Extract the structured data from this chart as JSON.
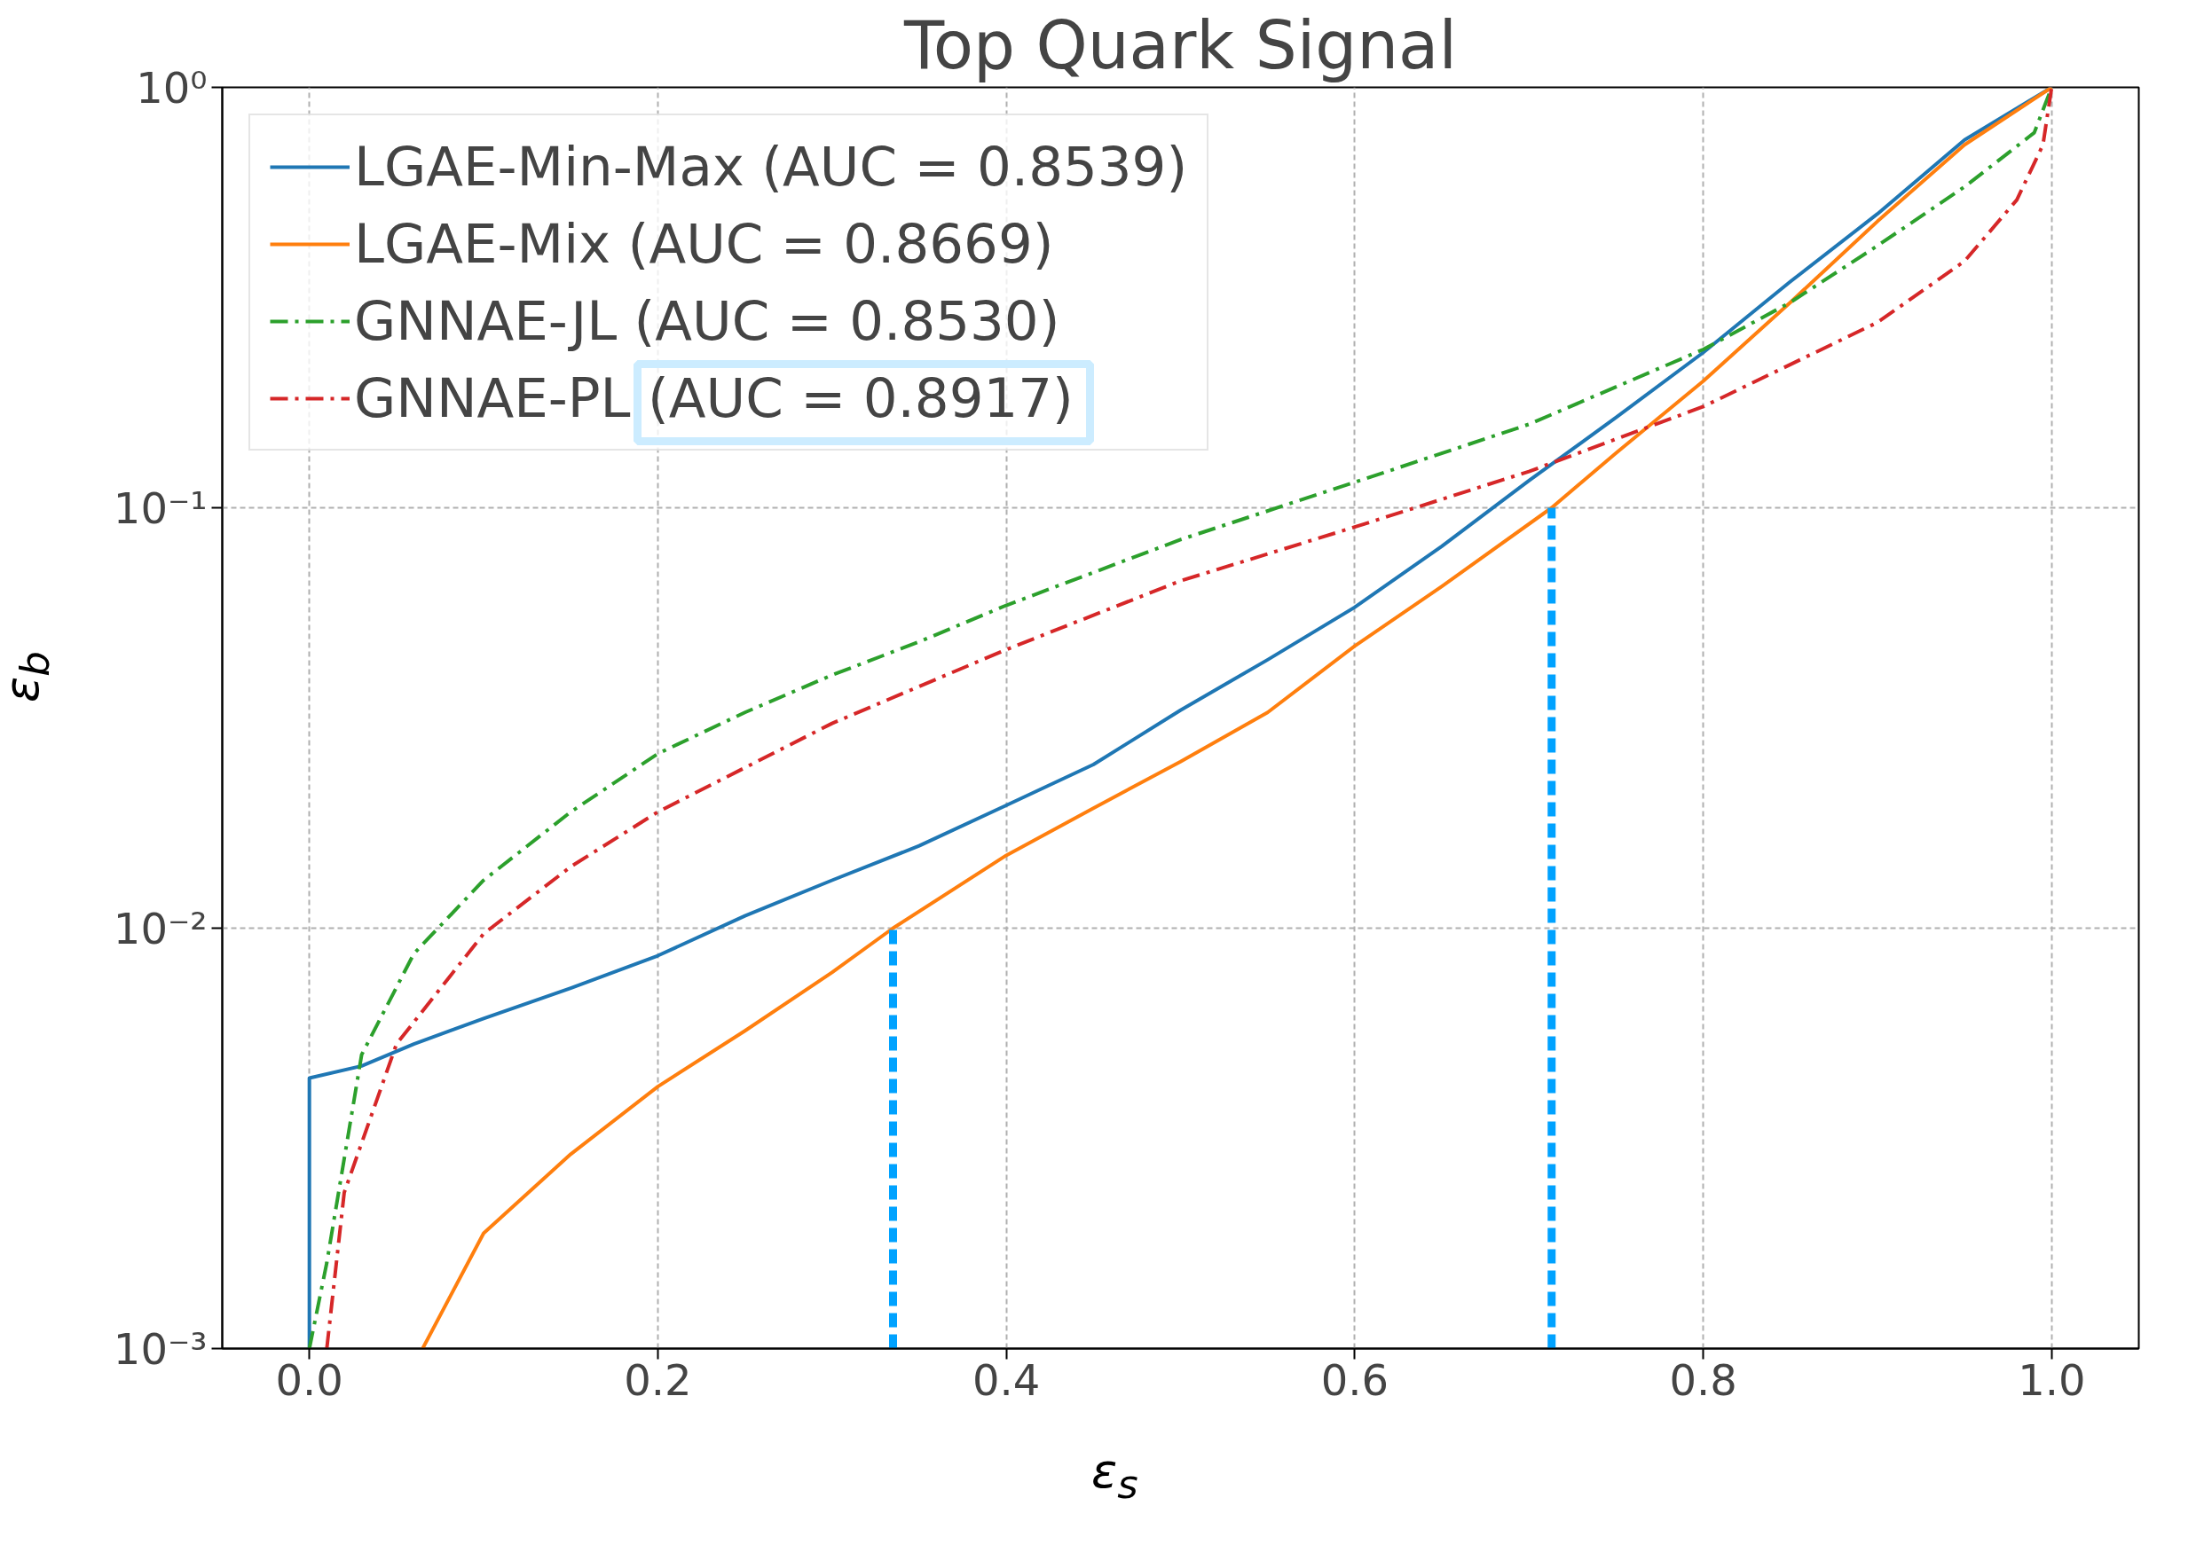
{
  "chart_data": {
    "type": "line",
    "title": "Top Quark Signal",
    "xlabel": "ε$_{s}$",
    "ylabel": "ε$_{b}$",
    "log": "y",
    "grid": true,
    "legend": "top left",
    "xlim": [
      -0.05,
      1.05
    ],
    "ylim": [
      0.001,
      1
    ],
    "xticks": [
      {
        "value": 0,
        "label": "0.0"
      },
      {
        "value": 0.2,
        "label": "0.2"
      },
      {
        "value": 0.4,
        "label": "0.4"
      },
      {
        "value": 0.6,
        "label": "0.6"
      },
      {
        "value": 0.8,
        "label": "0.8"
      },
      {
        "value": 1,
        "label": "1.0"
      }
    ],
    "yticks": [
      {
        "value": 0.001,
        "label": "10⁻³"
      },
      {
        "value": 0.01,
        "label": "10⁻²"
      },
      {
        "value": 0.1,
        "label": "10⁻¹"
      },
      {
        "value": 1,
        "label": "10⁰"
      }
    ],
    "series": [
      {
        "name": "LGAE-Min-Max (AUC = 0.8539)",
        "color": "#1f77b4",
        "line_style": "solid",
        "x": [
          0,
          0,
          0.03,
          0.06,
          0.1,
          0.15,
          0.2,
          0.25,
          0.3,
          0.35,
          0.4,
          0.45,
          0.5,
          0.55,
          0.6,
          0.65,
          0.7,
          0.75,
          0.8,
          0.85,
          0.9,
          0.95,
          1.0
        ],
        "values": [
          0.001,
          0.0044,
          0.0047,
          0.0053,
          0.0061,
          0.0072,
          0.0086,
          0.0107,
          0.013,
          0.0157,
          0.0196,
          0.0245,
          0.033,
          0.0435,
          0.058,
          0.081,
          0.116,
          0.164,
          0.234,
          0.345,
          0.5,
          0.75,
          1.0
        ]
      },
      {
        "name": "LGAE-Mix (AUC = 0.8669)",
        "color": "#ff7f0e",
        "line_style": "solid",
        "x": [
          0.065,
          0.1,
          0.15,
          0.2,
          0.25,
          0.3,
          0.335,
          0.4,
          0.45,
          0.5,
          0.55,
          0.6,
          0.65,
          0.713,
          0.75,
          0.8,
          0.85,
          0.9,
          0.95,
          1.0
        ],
        "values": [
          0.001,
          0.00188,
          0.0029,
          0.0042,
          0.0057,
          0.00785,
          0.01,
          0.0149,
          0.0193,
          0.0249,
          0.0326,
          0.0469,
          0.065,
          0.1,
          0.135,
          0.2,
          0.308,
          0.48,
          0.73,
          1.0
        ]
      },
      {
        "name": "GNNAE-JL (AUC = 0.8530)",
        "color": "#2ca02c",
        "line_style": "dashdot",
        "x": [
          0,
          0.01,
          0.03,
          0.06,
          0.1,
          0.15,
          0.2,
          0.25,
          0.3,
          0.35,
          0.4,
          0.5,
          0.6,
          0.7,
          0.8,
          0.85,
          0.9,
          0.95,
          0.99,
          1.0
        ],
        "values": [
          0.001,
          0.0016,
          0.005,
          0.0087,
          0.013,
          0.0189,
          0.026,
          0.0326,
          0.04,
          0.048,
          0.0586,
          0.084,
          0.115,
          0.158,
          0.238,
          0.308,
          0.42,
          0.58,
          0.78,
          1.0
        ]
      },
      {
        "name": "GNNAE-PL (AUC = 0.8917)",
        "color": "#d62728",
        "line_style": "dashdot",
        "x": [
          0.01,
          0.02,
          0.05,
          0.1,
          0.15,
          0.2,
          0.3,
          0.4,
          0.5,
          0.6,
          0.7,
          0.8,
          0.9,
          0.95,
          0.98,
          0.995,
          1.0
        ],
        "values": [
          0.001,
          0.00235,
          0.0053,
          0.0097,
          0.014,
          0.0189,
          0.0307,
          0.046,
          0.067,
          0.09,
          0.122,
          0.174,
          0.276,
          0.386,
          0.54,
          0.73,
          1.0
        ]
      },
      {
        "color": "#00a2ff",
        "line_style": "dashed",
        "x": [
          0.335,
          0.335
        ],
        "values": [
          0.001,
          0.01
        ]
      },
      {
        "color": "#00a2ff",
        "line_style": "dashed",
        "x": [
          0.713,
          0.713
        ],
        "values": [
          0.001,
          0.1
        ]
      }
    ]
  }
}
